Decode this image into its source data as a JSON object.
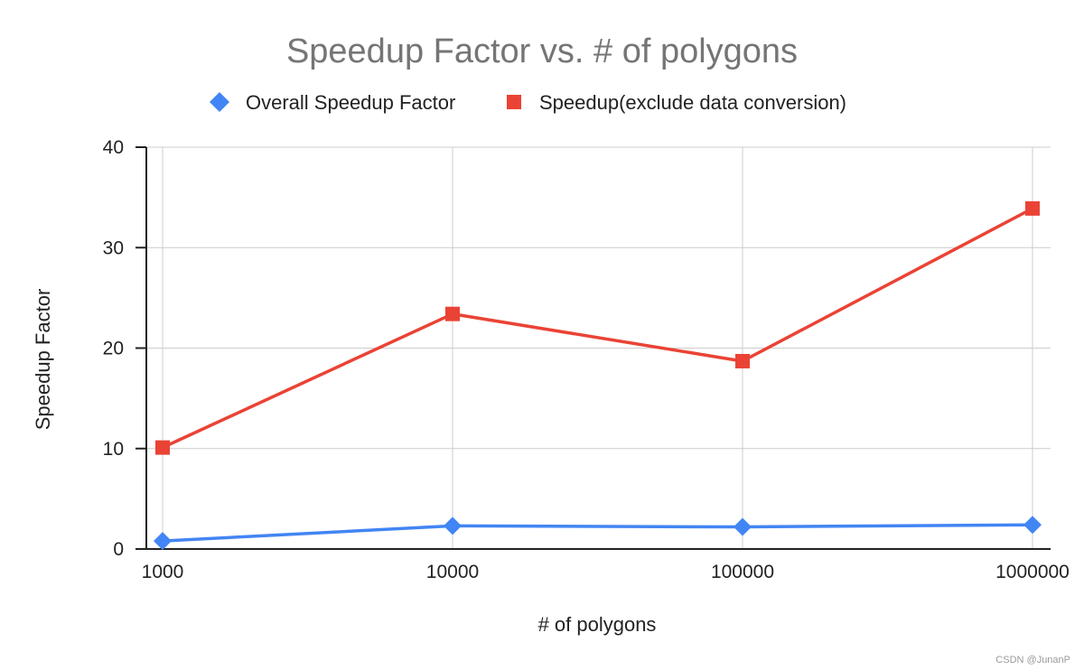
{
  "chart_data": {
    "type": "line",
    "title": "Speedup Factor vs. # of polygons",
    "xlabel": "# of polygons",
    "ylabel": "Speedup Factor",
    "categories": [
      "1000",
      "10000",
      "100000",
      "1000000"
    ],
    "x_scale": "log",
    "ylim": [
      0,
      40
    ],
    "yticks": [
      "0",
      "10",
      "20",
      "30",
      "40"
    ],
    "grid": true,
    "legend_position": "top",
    "series": [
      {
        "name": "Overall Speedup Factor",
        "values": [
          0.8,
          2.3,
          2.2,
          2.4
        ],
        "color": "#4285f4",
        "marker": "diamond"
      },
      {
        "name": "Speedup(exclude data conversion)",
        "values": [
          10.1,
          23.4,
          18.7,
          33.9
        ],
        "color": "#ea4335",
        "marker": "square"
      }
    ]
  },
  "watermark": "CSDN @JunanP"
}
